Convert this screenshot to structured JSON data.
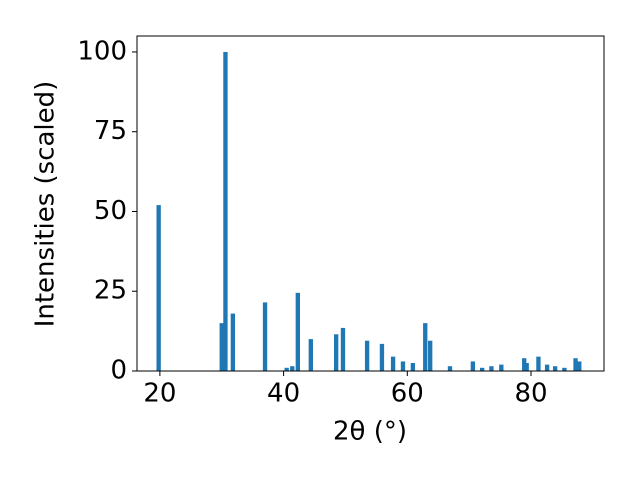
{
  "chart_data": {
    "type": "bar",
    "x_label": "2θ (°)",
    "y_label": "Intensities (scaled)",
    "x": [
      19.8,
      30.0,
      30.6,
      31.8,
      37.0,
      40.5,
      41.4,
      42.3,
      44.4,
      48.5,
      49.6,
      53.5,
      55.9,
      57.7,
      59.3,
      60.9,
      62.9,
      63.7,
      66.9,
      70.6,
      72.1,
      73.6,
      75.2,
      78.9,
      79.3,
      81.2,
      82.6,
      83.9,
      85.4,
      87.2,
      87.8
    ],
    "values": [
      52,
      15,
      100,
      18,
      21.5,
      1,
      1.5,
      24.5,
      10,
      11.5,
      13.5,
      9.5,
      8.5,
      4.5,
      3,
      2.5,
      15,
      9.5,
      1.5,
      3,
      1,
      1.5,
      2,
      4,
      2.5,
      4.5,
      2,
      1.5,
      1,
      4,
      3
    ],
    "color": "#1f77b4",
    "xlim": [
      16.3,
      91.8
    ],
    "xticks": [
      20,
      40,
      60,
      80
    ],
    "ylim": [
      0,
      105
    ],
    "yticks": [
      0,
      25,
      50,
      75,
      100
    ]
  }
}
